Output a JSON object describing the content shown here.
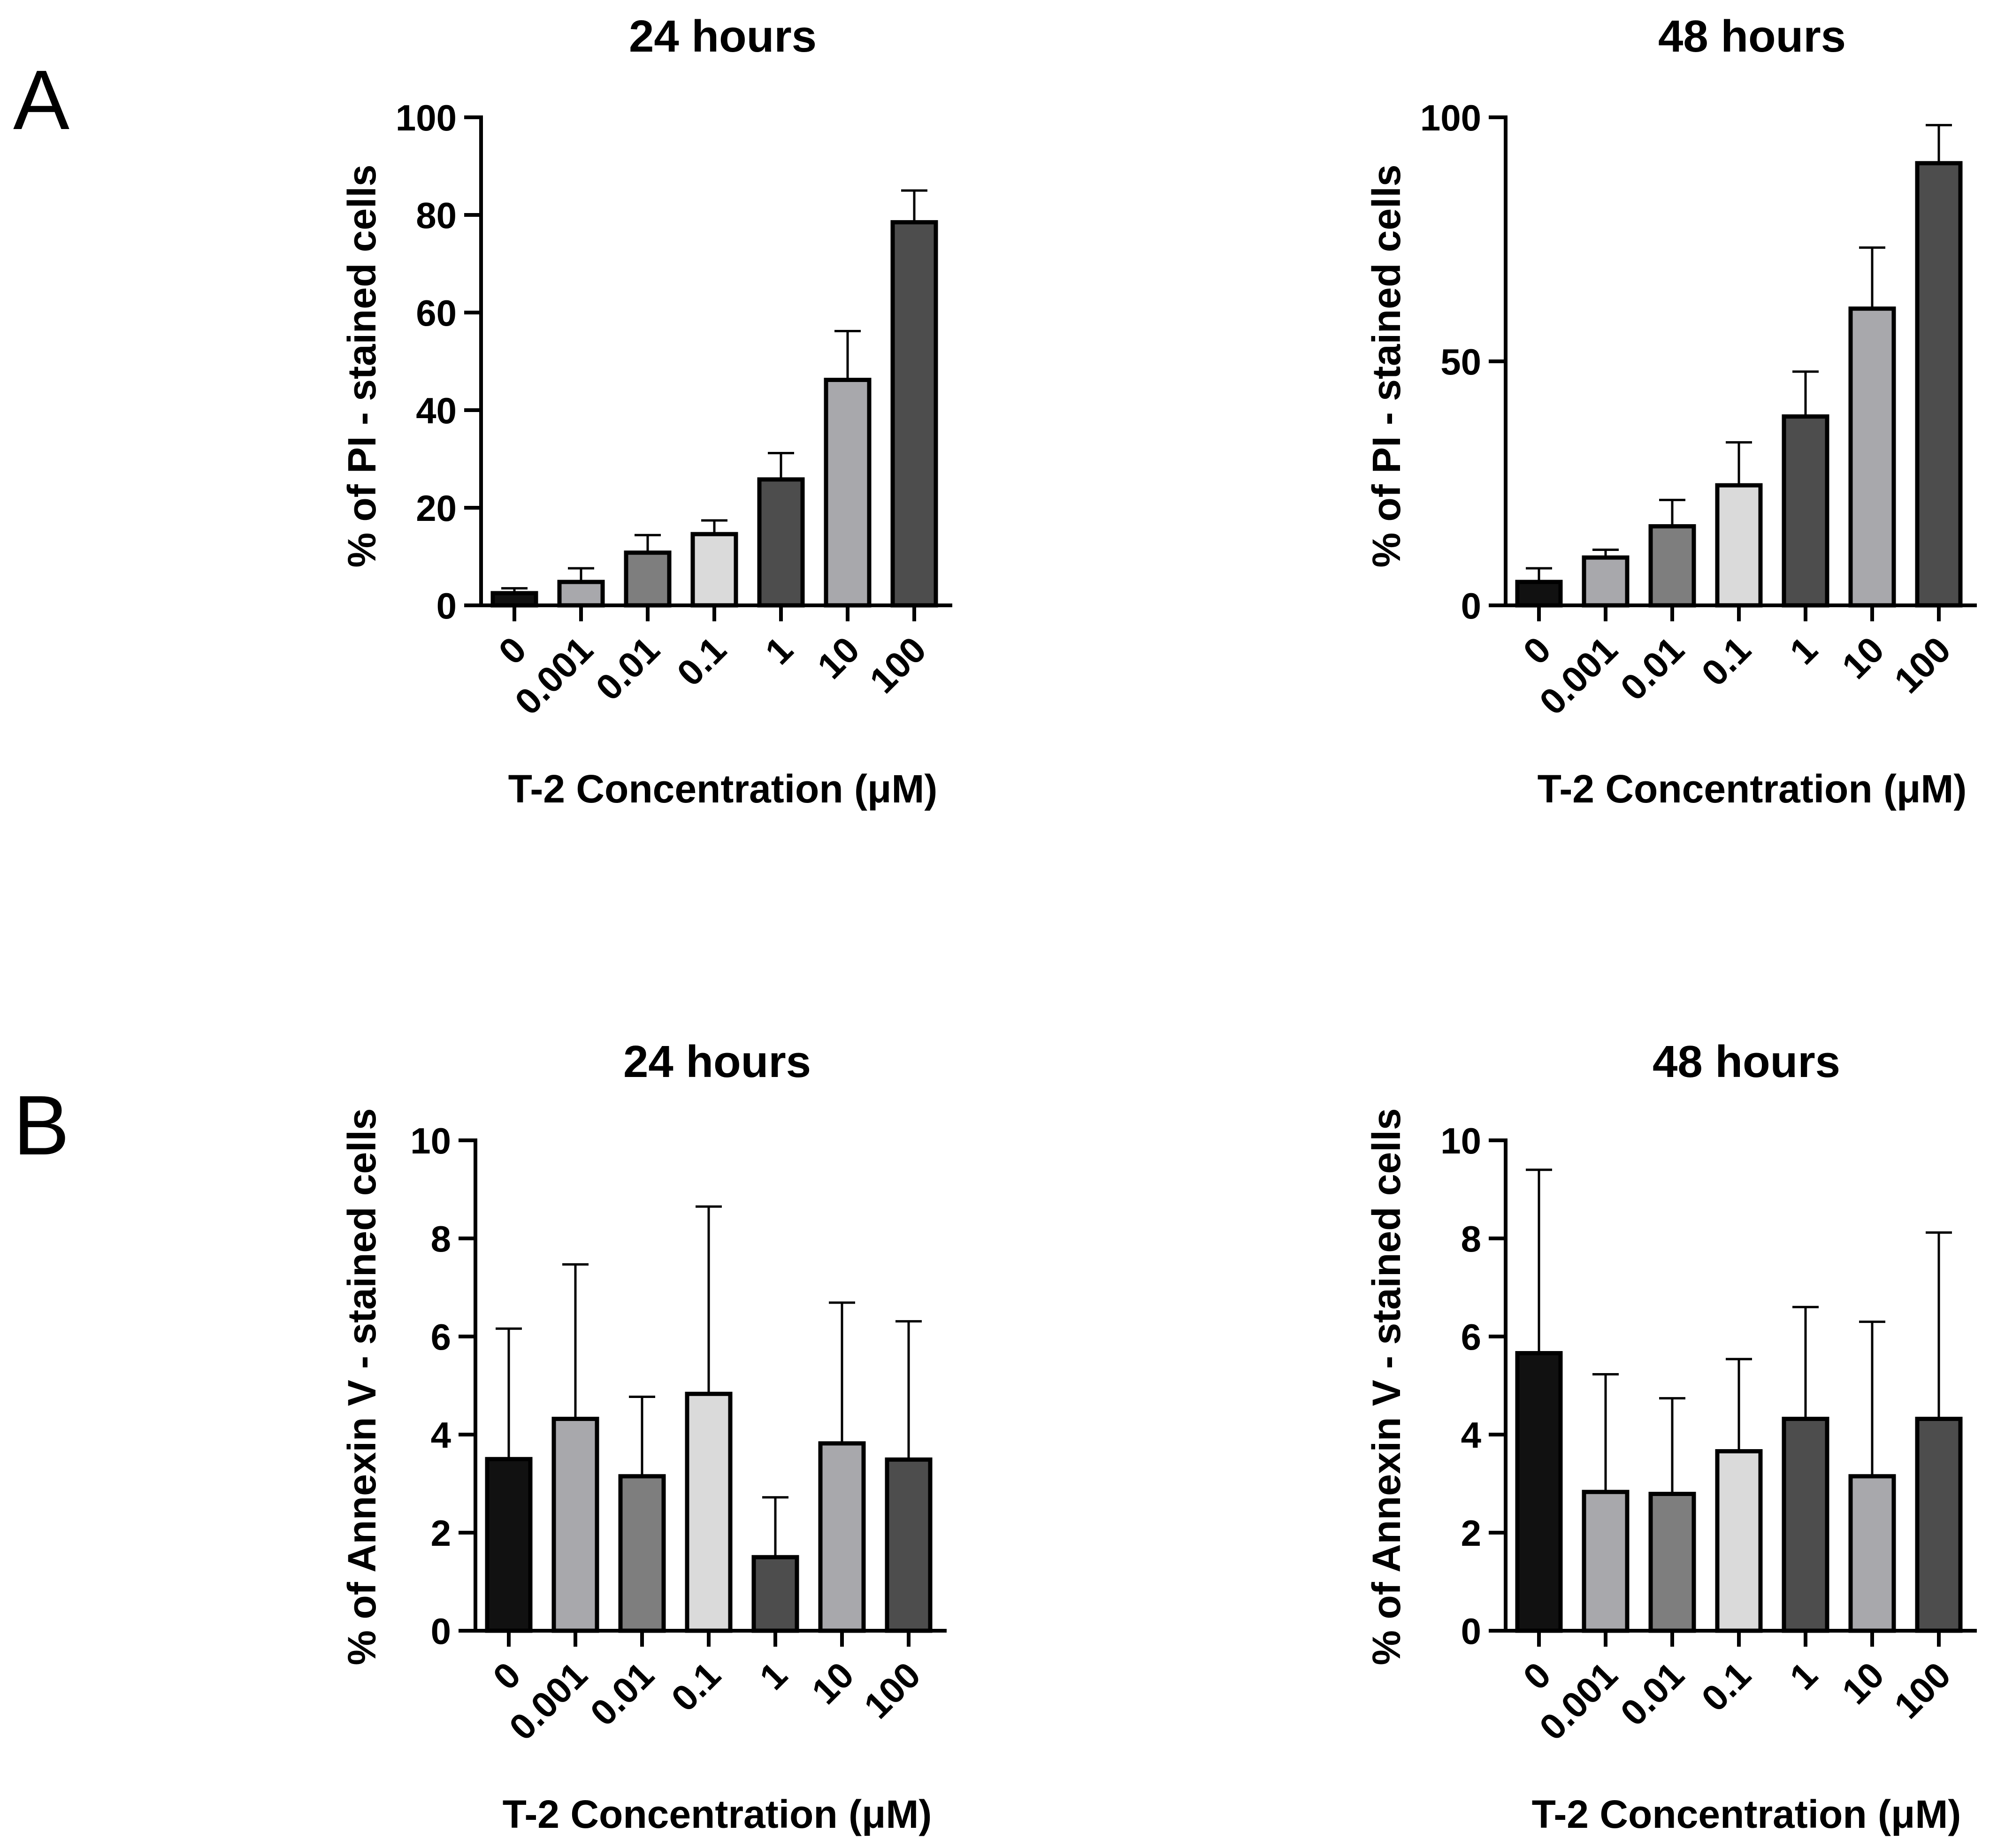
{
  "panels": [
    {
      "letter": "A"
    },
    {
      "letter": "B"
    }
  ],
  "chart_data": [
    {
      "type": "bar",
      "panel": "A",
      "title": "24 hours",
      "xlabel": "T-2 Concentration (μM)",
      "ylabel": "% of PI - stained cells",
      "categories": [
        "0",
        "0.001",
        "0.01",
        "0.1",
        "1",
        "10",
        "100"
      ],
      "values": [
        2.5,
        4.8,
        10.8,
        14.6,
        25.8,
        46.2,
        78.5
      ],
      "errors": [
        1.0,
        2.8,
        3.6,
        2.8,
        5.4,
        10.0,
        6.5
      ],
      "ylim": [
        0,
        100
      ],
      "yticks": [
        0,
        20,
        40,
        60,
        80,
        100
      ],
      "colors": [
        "#111111",
        "#a8a8ac",
        "#7e7e7e",
        "#dadada",
        "#4d4d4d",
        "#a8a8ac",
        "#4d4d4d"
      ],
      "grid": false
    },
    {
      "type": "bar",
      "panel": "A",
      "title": "48 hours",
      "xlabel": "T-2 Concentration (μM)",
      "ylabel": "% of PI - stained cells",
      "categories": [
        "0",
        "0.001",
        "0.01",
        "0.1",
        "1",
        "10",
        "100"
      ],
      "values": [
        4.8,
        9.8,
        16.2,
        24.6,
        38.7,
        60.8,
        90.6
      ],
      "errors": [
        2.8,
        1.6,
        5.4,
        8.8,
        9.2,
        12.5,
        7.8
      ],
      "ylim": [
        0,
        100
      ],
      "yticks": [
        0,
        50,
        100
      ],
      "colors": [
        "#111111",
        "#a8a8ac",
        "#7e7e7e",
        "#dadada",
        "#4d4d4d",
        "#a8a8ac",
        "#4d4d4d"
      ],
      "grid": false
    },
    {
      "type": "bar",
      "panel": "B",
      "title": "24 hours",
      "xlabel": "T-2 Concentration (μM)",
      "ylabel": "% of Annexin V - stained cells",
      "categories": [
        "0",
        "0.001",
        "0.01",
        "0.1",
        "1",
        "10",
        "100"
      ],
      "values": [
        3.5,
        4.32,
        3.15,
        4.83,
        1.5,
        3.82,
        3.49
      ],
      "errors": [
        2.66,
        3.15,
        1.62,
        3.82,
        1.22,
        2.87,
        2.82
      ],
      "ylim": [
        0,
        10
      ],
      "yticks": [
        0,
        2,
        4,
        6,
        8,
        10
      ],
      "colors": [
        "#111111",
        "#a8a8ac",
        "#7e7e7e",
        "#dadada",
        "#4d4d4d",
        "#a8a8ac",
        "#4d4d4d"
      ],
      "grid": false
    },
    {
      "type": "bar",
      "panel": "B",
      "title": "48 hours",
      "xlabel": "T-2 Concentration (μM)",
      "ylabel": "% of Annexin V - stained cells",
      "categories": [
        "0",
        "0.001",
        "0.01",
        "0.1",
        "1",
        "10",
        "100"
      ],
      "values": [
        5.66,
        2.83,
        2.79,
        3.66,
        4.32,
        3.15,
        4.32
      ],
      "errors": [
        3.74,
        2.4,
        1.95,
        1.88,
        2.28,
        3.15,
        3.8
      ],
      "ylim": [
        0,
        10
      ],
      "yticks": [
        0,
        2,
        4,
        6,
        8,
        10
      ],
      "colors": [
        "#111111",
        "#a8a8ac",
        "#7e7e7e",
        "#dadada",
        "#4d4d4d",
        "#a8a8ac",
        "#4d4d4d"
      ],
      "grid": false
    }
  ]
}
